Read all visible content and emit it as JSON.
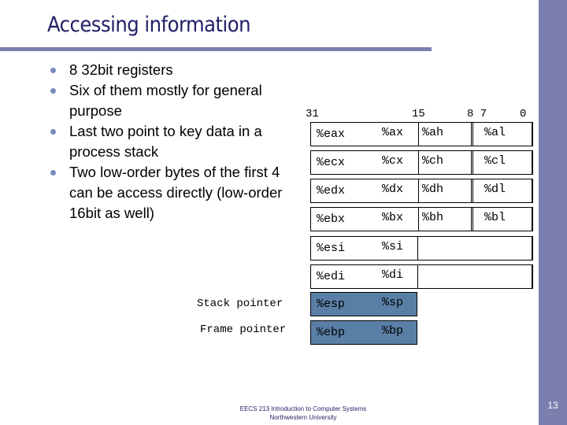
{
  "title": "Accessing information",
  "bullets": [
    "8 32bit registers",
    "Six of them mostly for general purpose",
    "Last two point to key data in a process stack",
    "Two low-order bytes of the first 4 can be access directly (low-order 16bit as well)"
  ],
  "bit_labels": {
    "b31": "31",
    "b15": "15",
    "b87": "8 7",
    "b0": "0"
  },
  "registers": [
    {
      "name": "%eax",
      "x16": "%ax",
      "hi": "%ah",
      "lo": "%al"
    },
    {
      "name": "%ecx",
      "x16": "%cx",
      "hi": "%ch",
      "lo": "%cl"
    },
    {
      "name": "%edx",
      "x16": "%dx",
      "hi": "%dh",
      "lo": "%dl"
    },
    {
      "name": "%ebx",
      "x16": "%bx",
      "hi": "%bh",
      "lo": "%bl"
    },
    {
      "name": "%esi",
      "x16": "%si"
    },
    {
      "name": "%edi",
      "x16": "%di"
    },
    {
      "name": "%esp",
      "x16": "%sp"
    },
    {
      "name": "%ebp",
      "x16": "%bp"
    }
  ],
  "pointer_labels": {
    "stack": "Stack pointer",
    "frame": "Frame pointer"
  },
  "footer": {
    "line1": "EECS 213 Introduction to Computer Systems",
    "line2": "Northwestern University"
  },
  "page_number": "13",
  "colors": {
    "accent": "#7b7fae",
    "title": "#1f1f66",
    "shaded_register": "#5a7fa6",
    "bullet": "#7b8bc0"
  }
}
